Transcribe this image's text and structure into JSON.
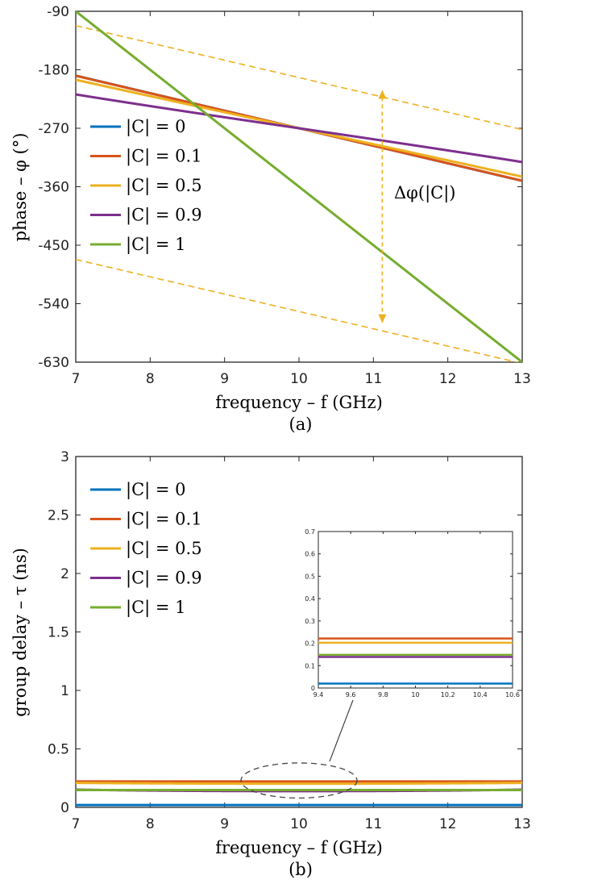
{
  "chart_data": [
    {
      "id": "a",
      "type": "line",
      "panel_label": "(a)",
      "xlabel": "frequency – f (GHz)",
      "ylabel": "phase – φ (°)",
      "xlim": [
        7,
        13
      ],
      "ylim": [
        -630,
        -90
      ],
      "xticks": [
        7,
        8,
        9,
        10,
        11,
        12,
        13
      ],
      "yticks": [
        -90,
        -180,
        -270,
        -360,
        -450,
        -540,
        -630
      ],
      "center_frequency": 10,
      "legend": {
        "position": "left-middle"
      },
      "series": [
        {
          "name": "|C| = 0",
          "C": 0,
          "color": "#0072BD"
        },
        {
          "name": "|C| = 0.1",
          "C": 0.1,
          "color": "#D95319"
        },
        {
          "name": "|C| = 0.5",
          "C": 0.5,
          "color": "#EDB120"
        },
        {
          "name": "|C| = 0.9",
          "C": 0.9,
          "color": "#7E2F8E"
        },
        {
          "name": "|C| = 1",
          "C": 1,
          "color": "#77AC30"
        }
      ],
      "asymptotes": [
        {
          "x": [
            7,
            13
          ],
          "y": [
            -112,
            -272
          ]
        },
        {
          "x": [
            7,
            13
          ],
          "y": [
            -472,
            -632
          ]
        }
      ],
      "annotation": {
        "text": "Δφ(|C|)",
        "arrow_x": 11.12,
        "arrow_y": [
          -211,
          -570
        ],
        "color": "#EDB120"
      }
    },
    {
      "id": "b",
      "type": "line",
      "panel_label": "(b)",
      "xlabel": "frequency – f (GHz)",
      "ylabel": "group delay – τ (ns)",
      "xlim": [
        7,
        13
      ],
      "ylim": [
        0,
        3
      ],
      "xticks": [
        7,
        8,
        9,
        10,
        11,
        12,
        13
      ],
      "yticks": [
        0,
        0.5,
        1,
        1.5,
        2,
        2.5,
        3
      ],
      "legend": {
        "position": "top-left"
      },
      "series": [
        {
          "name": "|C| = 0",
          "C": 0,
          "color": "#0072BD"
        },
        {
          "name": "|C| = 0.1",
          "C": 0.1,
          "color": "#D95319"
        },
        {
          "name": "|C| = 0.5",
          "C": 0.5,
          "color": "#EDB120"
        },
        {
          "name": "|C| = 0.9",
          "C": 0.9,
          "color": "#7E2F8E"
        },
        {
          "name": "|C| = 1",
          "C": 1,
          "color": "#77AC30"
        }
      ],
      "highlight_ellipse": {
        "cx": 10,
        "cy": 0.23,
        "rx": 0.78,
        "ry": 0.15
      },
      "inset": {
        "xlim": [
          9.4,
          10.6
        ],
        "ylim": [
          0,
          0.7
        ],
        "xticks": [
          9.4,
          9.6,
          9.8,
          10,
          10.2,
          10.4,
          10.6
        ],
        "yticks": [
          0,
          0.1,
          0.2,
          0.3,
          0.4,
          0.5,
          0.6,
          0.7
        ]
      }
    }
  ]
}
